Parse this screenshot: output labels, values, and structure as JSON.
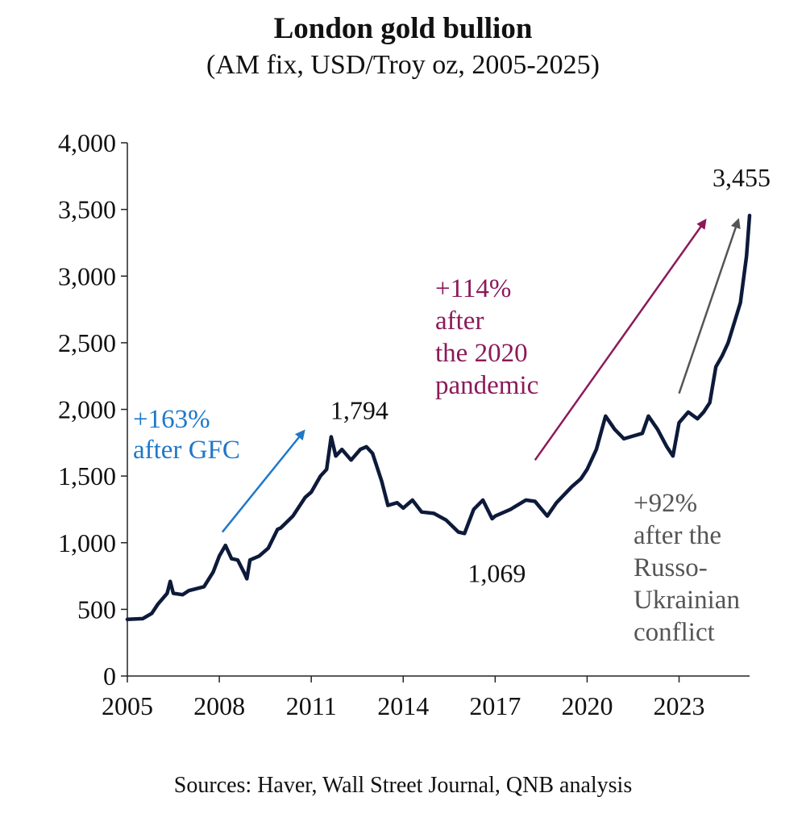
{
  "chart_data": {
    "type": "line",
    "title": "London gold bullion",
    "subtitle": "(AM fix, USD/Troy oz, 2005-2025)",
    "xlabel": "",
    "ylabel": "",
    "xlim": [
      2005,
      2025.3
    ],
    "ylim": [
      0,
      4000
    ],
    "grid": false,
    "x_ticks": [
      2005,
      2008,
      2011,
      2014,
      2017,
      2020,
      2023
    ],
    "x_tick_labels": [
      "2005",
      "2008",
      "2011",
      "2014",
      "2017",
      "2020",
      "2023"
    ],
    "y_ticks": [
      0,
      500,
      1000,
      1500,
      2000,
      2500,
      3000,
      3500,
      4000
    ],
    "y_tick_labels": [
      "0",
      "500",
      "1,000",
      "1,500",
      "2,000",
      "2,500",
      "3,000",
      "3,500",
      "4,000"
    ],
    "series": [
      {
        "name": "London gold bullion AM fix",
        "color": "#0d1a3a",
        "x": [
          2005.0,
          2005.5,
          2005.8,
          2006.0,
          2006.3,
          2006.4,
          2006.5,
          2006.8,
          2007.0,
          2007.5,
          2007.8,
          2008.0,
          2008.2,
          2008.4,
          2008.6,
          2008.8,
          2008.9,
          2009.0,
          2009.3,
          2009.6,
          2009.9,
          2010.0,
          2010.4,
          2010.8,
          2011.0,
          2011.3,
          2011.5,
          2011.65,
          2011.8,
          2012.0,
          2012.3,
          2012.6,
          2012.8,
          2013.0,
          2013.3,
          2013.5,
          2013.8,
          2014.0,
          2014.3,
          2014.6,
          2015.0,
          2015.4,
          2015.8,
          2016.0,
          2016.3,
          2016.6,
          2016.9,
          2017.0,
          2017.5,
          2018.0,
          2018.3,
          2018.7,
          2019.0,
          2019.5,
          2019.8,
          2020.0,
          2020.3,
          2020.6,
          2020.9,
          2021.2,
          2021.5,
          2021.8,
          2022.0,
          2022.3,
          2022.6,
          2022.8,
          2023.0,
          2023.3,
          2023.6,
          2023.8,
          2024.0,
          2024.2,
          2024.4,
          2024.6,
          2024.8,
          2025.0,
          2025.2,
          2025.3
        ],
        "values": [
          425,
          430,
          470,
          540,
          620,
          710,
          620,
          610,
          640,
          670,
          780,
          900,
          980,
          880,
          870,
          780,
          730,
          870,
          900,
          960,
          1100,
          1110,
          1200,
          1340,
          1380,
          1500,
          1550,
          1794,
          1650,
          1700,
          1620,
          1700,
          1720,
          1670,
          1460,
          1280,
          1300,
          1260,
          1320,
          1230,
          1220,
          1170,
          1080,
          1069,
          1250,
          1320,
          1180,
          1200,
          1250,
          1320,
          1310,
          1200,
          1300,
          1420,
          1480,
          1550,
          1700,
          1950,
          1850,
          1780,
          1800,
          1820,
          1950,
          1850,
          1720,
          1650,
          1900,
          1980,
          1930,
          1980,
          2050,
          2320,
          2400,
          2500,
          2650,
          2800,
          3150,
          3455
        ]
      }
    ],
    "data_labels": [
      {
        "label": "1,794",
        "x": 2011.65,
        "value": 1794
      },
      {
        "label": "1,069",
        "x": 2016.0,
        "value": 1069
      },
      {
        "label": "3,455",
        "x": 2025.3,
        "value": 3455
      }
    ],
    "annotations": [
      {
        "lines": [
          "+163%",
          "after GFC"
        ],
        "color": "#1f78c8",
        "arrow_from": [
          2008.1,
          1080
        ],
        "arrow_to": [
          2010.7,
          1820
        ]
      },
      {
        "lines": [
          "+114%",
          "after",
          "the 2020",
          "pandemic"
        ],
        "color": "#8b1a5a",
        "arrow_from": [
          2018.3,
          1620
        ],
        "arrow_to": [
          2023.8,
          3400
        ]
      },
      {
        "lines": [
          "+92%",
          "after the",
          "Russo-",
          "Ukrainian",
          "conflict"
        ],
        "color": "#555555",
        "arrow_from": [
          2023.0,
          2120
        ],
        "arrow_to": [
          2024.9,
          3400
        ]
      }
    ],
    "source": "Sources: Haver, Wall Street Journal, QNB analysis"
  }
}
